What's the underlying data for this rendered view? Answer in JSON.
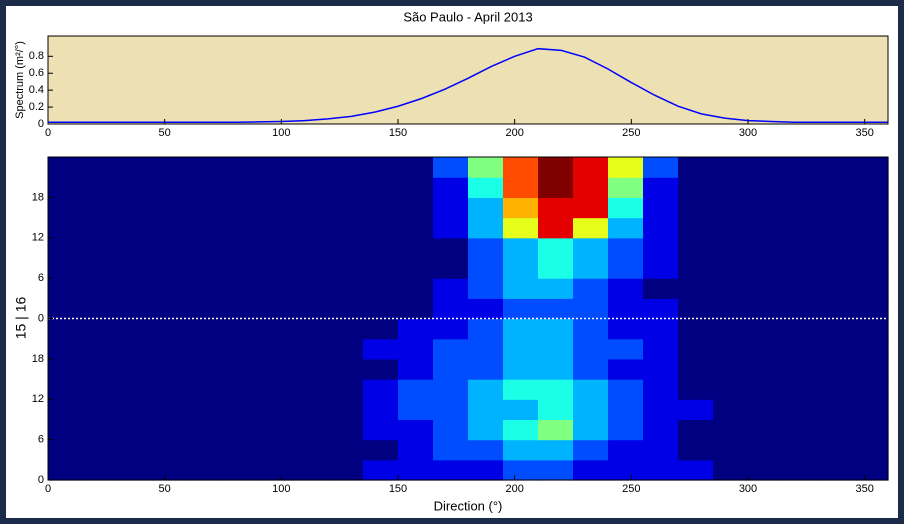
{
  "chart_data": [
    {
      "type": "line",
      "title": "São Paulo - April 2013",
      "ylabel": "Spectrum (m²/°)",
      "x": [
        0,
        10,
        20,
        30,
        40,
        50,
        60,
        70,
        80,
        90,
        100,
        110,
        120,
        130,
        140,
        150,
        160,
        170,
        180,
        190,
        200,
        210,
        220,
        230,
        240,
        250,
        260,
        270,
        280,
        290,
        300,
        310,
        320,
        330,
        340,
        350,
        360
      ],
      "values": [
        0.02,
        0.02,
        0.02,
        0.02,
        0.02,
        0.02,
        0.02,
        0.02,
        0.02,
        0.025,
        0.03,
        0.04,
        0.06,
        0.09,
        0.14,
        0.21,
        0.3,
        0.41,
        0.54,
        0.68,
        0.8,
        0.89,
        0.87,
        0.79,
        0.65,
        0.49,
        0.34,
        0.21,
        0.12,
        0.07,
        0.04,
        0.03,
        0.02,
        0.02,
        0.02,
        0.02,
        0.02
      ],
      "color": "#0000ff",
      "background": "#ede0b2",
      "xlim": [
        0,
        360
      ],
      "xticks": [
        0,
        50,
        100,
        150,
        200,
        250,
        300,
        350
      ],
      "ylim": [
        0,
        1.04
      ],
      "yticks": [
        0,
        0.2,
        0.4,
        0.6,
        0.8
      ]
    },
    {
      "type": "heatmap",
      "xlabel": "Direction (°)",
      "ylabel": "15 | 16",
      "colormap": "jet",
      "zlim": [
        0,
        10
      ],
      "x_edges": [
        0,
        15,
        30,
        45,
        60,
        75,
        90,
        105,
        120,
        135,
        150,
        165,
        180,
        195,
        210,
        225,
        240,
        255,
        270,
        285,
        300,
        315,
        330,
        345,
        360
      ],
      "y_edges": [
        0,
        3,
        6,
        9,
        12,
        15,
        18,
        21,
        24,
        27,
        30,
        33,
        36,
        39,
        42,
        45,
        48
      ],
      "z": [
        [
          0,
          0,
          0,
          0,
          0,
          0,
          0,
          0,
          0,
          1,
          1,
          1,
          1,
          2,
          2,
          1,
          1,
          1,
          1,
          0,
          0,
          0,
          0,
          0
        ],
        [
          0,
          0,
          0,
          0,
          0,
          0,
          0,
          0,
          0,
          0,
          1,
          2,
          2,
          3,
          3,
          2,
          1,
          1,
          0,
          0,
          0,
          0,
          0,
          0
        ],
        [
          0,
          0,
          0,
          0,
          0,
          0,
          0,
          0,
          0,
          1,
          1,
          2,
          3,
          4,
          5,
          3,
          2,
          1,
          0,
          0,
          0,
          0,
          0,
          0
        ],
        [
          0,
          0,
          0,
          0,
          0,
          0,
          0,
          0,
          0,
          1,
          2,
          2,
          3,
          3,
          4,
          3,
          2,
          1,
          1,
          0,
          0,
          0,
          0,
          0
        ],
        [
          0,
          0,
          0,
          0,
          0,
          0,
          0,
          0,
          0,
          1,
          2,
          2,
          3,
          4,
          4,
          3,
          2,
          1,
          0,
          0,
          0,
          0,
          0,
          0
        ],
        [
          0,
          0,
          0,
          0,
          0,
          0,
          0,
          0,
          0,
          0,
          1,
          2,
          2,
          3,
          3,
          2,
          1,
          1,
          0,
          0,
          0,
          0,
          0,
          0
        ],
        [
          0,
          0,
          0,
          0,
          0,
          0,
          0,
          0,
          0,
          1,
          1,
          2,
          2,
          3,
          3,
          2,
          2,
          1,
          0,
          0,
          0,
          0,
          0,
          0
        ],
        [
          0,
          0,
          0,
          0,
          0,
          0,
          0,
          0,
          0,
          0,
          1,
          1,
          2,
          3,
          3,
          2,
          1,
          1,
          0,
          0,
          0,
          0,
          0,
          0
        ],
        [
          0,
          0,
          0,
          0,
          0,
          0,
          0,
          0,
          0,
          0,
          0,
          1,
          1,
          2,
          2,
          2,
          1,
          1,
          0,
          0,
          0,
          0,
          0,
          0
        ],
        [
          0,
          0,
          0,
          0,
          0,
          0,
          0,
          0,
          0,
          0,
          0,
          1,
          2,
          3,
          3,
          2,
          1,
          0,
          0,
          0,
          0,
          0,
          0,
          0
        ],
        [
          0,
          0,
          0,
          0,
          0,
          0,
          0,
          0,
          0,
          0,
          0,
          0,
          2,
          3,
          4,
          3,
          2,
          1,
          0,
          0,
          0,
          0,
          0,
          0
        ],
        [
          0,
          0,
          0,
          0,
          0,
          0,
          0,
          0,
          0,
          0,
          0,
          0,
          2,
          3,
          4,
          3,
          2,
          1,
          0,
          0,
          0,
          0,
          0,
          0
        ],
        [
          0,
          0,
          0,
          0,
          0,
          0,
          0,
          0,
          0,
          0,
          0,
          1,
          3,
          6,
          9,
          6,
          3,
          1,
          0,
          0,
          0,
          0,
          0,
          0
        ],
        [
          0,
          0,
          0,
          0,
          0,
          0,
          0,
          0,
          0,
          0,
          0,
          1,
          3,
          7,
          9,
          9,
          4,
          1,
          0,
          0,
          0,
          0,
          0,
          0
        ],
        [
          0,
          0,
          0,
          0,
          0,
          0,
          0,
          0,
          0,
          0,
          0,
          1,
          4,
          8,
          10,
          9,
          5,
          1,
          0,
          0,
          0,
          0,
          0,
          0
        ],
        [
          0,
          0,
          0,
          0,
          0,
          0,
          0,
          0,
          0,
          0,
          0,
          2,
          5,
          8,
          10,
          9,
          6,
          2,
          0,
          0,
          0,
          0,
          0,
          0
        ]
      ],
      "hline": 24,
      "hline_color": "#ffffff",
      "xlim": [
        0,
        360
      ],
      "xticks": [
        0,
        50,
        100,
        150,
        200,
        250,
        300,
        350
      ],
      "ylim": [
        0,
        48
      ],
      "yticks": [
        0,
        6,
        12,
        18,
        {
          "value": 24,
          "label": "0"
        },
        {
          "value": 30,
          "label": "6"
        },
        {
          "value": 36,
          "label": "12"
        },
        {
          "value": 42,
          "label": "18"
        }
      ]
    }
  ]
}
